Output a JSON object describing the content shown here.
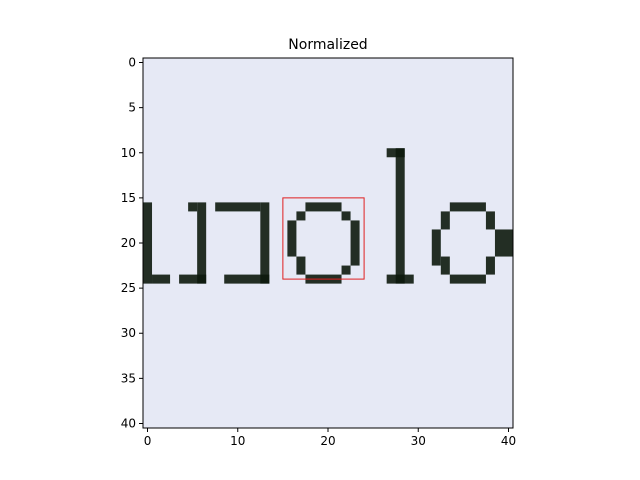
{
  "chart_data": {
    "type": "heatmap",
    "title": "Normalized",
    "xlabel": "",
    "ylabel": "",
    "image_size": [
      41,
      41
    ],
    "xlim": [
      -0.5,
      40.5
    ],
    "ylim": [
      40.5,
      -0.5
    ],
    "xticks": [
      0,
      10,
      20,
      30,
      40
    ],
    "yticks": [
      0,
      5,
      10,
      15,
      20,
      25,
      30,
      35,
      40
    ],
    "xtick_labels": [
      "0",
      "10",
      "20",
      "30",
      "40"
    ],
    "ytick_labels": [
      "0",
      "5",
      "10",
      "15",
      "20",
      "25",
      "30",
      "35",
      "40"
    ],
    "image_content": "scanned handwriting snippet showing the letters \"nolo\"",
    "highlight_box": {
      "x0": 15,
      "x1": 24,
      "y0": 15,
      "y1": 24,
      "color": "#e01f1f"
    },
    "background_color": "#e6e9f5",
    "ink_color": "#0d1a0d",
    "strokes": [
      {
        "x0": -0.5,
        "x1": 0.5,
        "y0": 15.5,
        "y1": 24.5
      },
      {
        "x0": 0.5,
        "x1": 2.5,
        "y0": 23.5,
        "y1": 24.5
      },
      {
        "x0": 3.5,
        "x1": 6.5,
        "y0": 23.5,
        "y1": 24.5
      },
      {
        "x0": 5.5,
        "x1": 6.5,
        "y0": 15.5,
        "y1": 24.5
      },
      {
        "x0": 4.5,
        "x1": 5.5,
        "y0": 15.5,
        "y1": 16.5
      },
      {
        "x0": 7.5,
        "x1": 12.5,
        "y0": 15.5,
        "y1": 16.5
      },
      {
        "x0": 12.5,
        "x1": 13.5,
        "y0": 15.5,
        "y1": 24.5
      },
      {
        "x0": 8.5,
        "x1": 13.5,
        "y0": 23.5,
        "y1": 24.5
      },
      {
        "x0": 26.5,
        "x1": 28.5,
        "y0": 9.5,
        "y1": 10.5
      },
      {
        "x0": 27.5,
        "x1": 28.5,
        "y0": 9.5,
        "y1": 24.5
      },
      {
        "x0": 26.5,
        "x1": 29.5,
        "y0": 23.5,
        "y1": 24.5
      },
      {
        "x0": 31.5,
        "x1": 32.5,
        "y0": 18.5,
        "y1": 22.5
      },
      {
        "x0": 32.5,
        "x1": 33.5,
        "y0": 16.5,
        "y1": 18.5
      },
      {
        "x0": 33.5,
        "x1": 37.5,
        "y0": 15.5,
        "y1": 16.5
      },
      {
        "x0": 37.5,
        "x1": 38.5,
        "y0": 16.5,
        "y1": 18.5
      },
      {
        "x0": 38.5,
        "x1": 40.5,
        "y0": 18.5,
        "y1": 21.5
      },
      {
        "x0": 37.5,
        "x1": 38.5,
        "y0": 21.5,
        "y1": 23.5
      },
      {
        "x0": 33.5,
        "x1": 37.5,
        "y0": 23.5,
        "y1": 24.5
      },
      {
        "x0": 32.5,
        "x1": 33.5,
        "y0": 21.5,
        "y1": 23.5
      },
      {
        "x0": 15.5,
        "x1": 16.5,
        "y0": 17.5,
        "y1": 21.5
      },
      {
        "x0": 16.5,
        "x1": 17.5,
        "y0": 16.5,
        "y1": 17.5
      },
      {
        "x0": 17.5,
        "x1": 21.5,
        "y0": 15.5,
        "y1": 16.5
      },
      {
        "x0": 21.5,
        "x1": 22.5,
        "y0": 16.5,
        "y1": 17.5
      },
      {
        "x0": 22.5,
        "x1": 23.5,
        "y0": 17.5,
        "y1": 22.5
      },
      {
        "x0": 21.5,
        "x1": 22.5,
        "y0": 22.5,
        "y1": 23.5
      },
      {
        "x0": 17.5,
        "x1": 21.5,
        "y0": 23.5,
        "y1": 24.5
      },
      {
        "x0": 16.5,
        "x1": 17.5,
        "y0": 21.5,
        "y1": 23.5
      }
    ]
  }
}
